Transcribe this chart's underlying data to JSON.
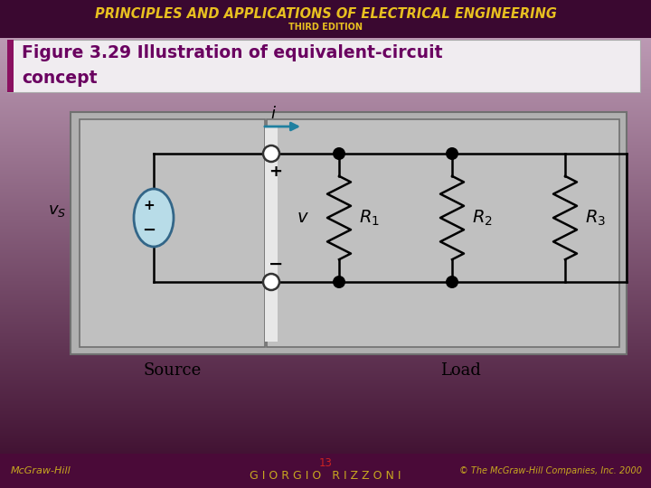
{
  "title_main": "PRINCIPLES AND APPLICATIONS OF ELECTRICAL ENGINEERING",
  "title_sub": "THIRD EDITION",
  "bg_top_color": "#5a1045",
  "bg_mid_color": "#8a2060",
  "bg_bottom_color": "#c8a8c0",
  "header_bg": "#3a0830",
  "title_color": "#e8c020",
  "subtitle_color": "#e8c020",
  "fig_title_line1": "Figure 3.29 Illustration of equivalent-circuit",
  "fig_title_line2": "concept",
  "fig_title_color": "#6a0060",
  "fig_title_bg": "#f0ecf0",
  "fig_title_bar_color": "#8a1060",
  "source_label": "Source",
  "load_label": "Load",
  "footer_left": "McGraw-Hill",
  "footer_center_num": "13",
  "footer_center_name": "G I O R G I O   R I Z Z O N I",
  "footer_right": "© The McGraw-Hill Companies, Inc. 2000",
  "footer_num_color": "#cc2222",
  "footer_text_color": "#c8a820",
  "footer_bg": "#4a0a38"
}
